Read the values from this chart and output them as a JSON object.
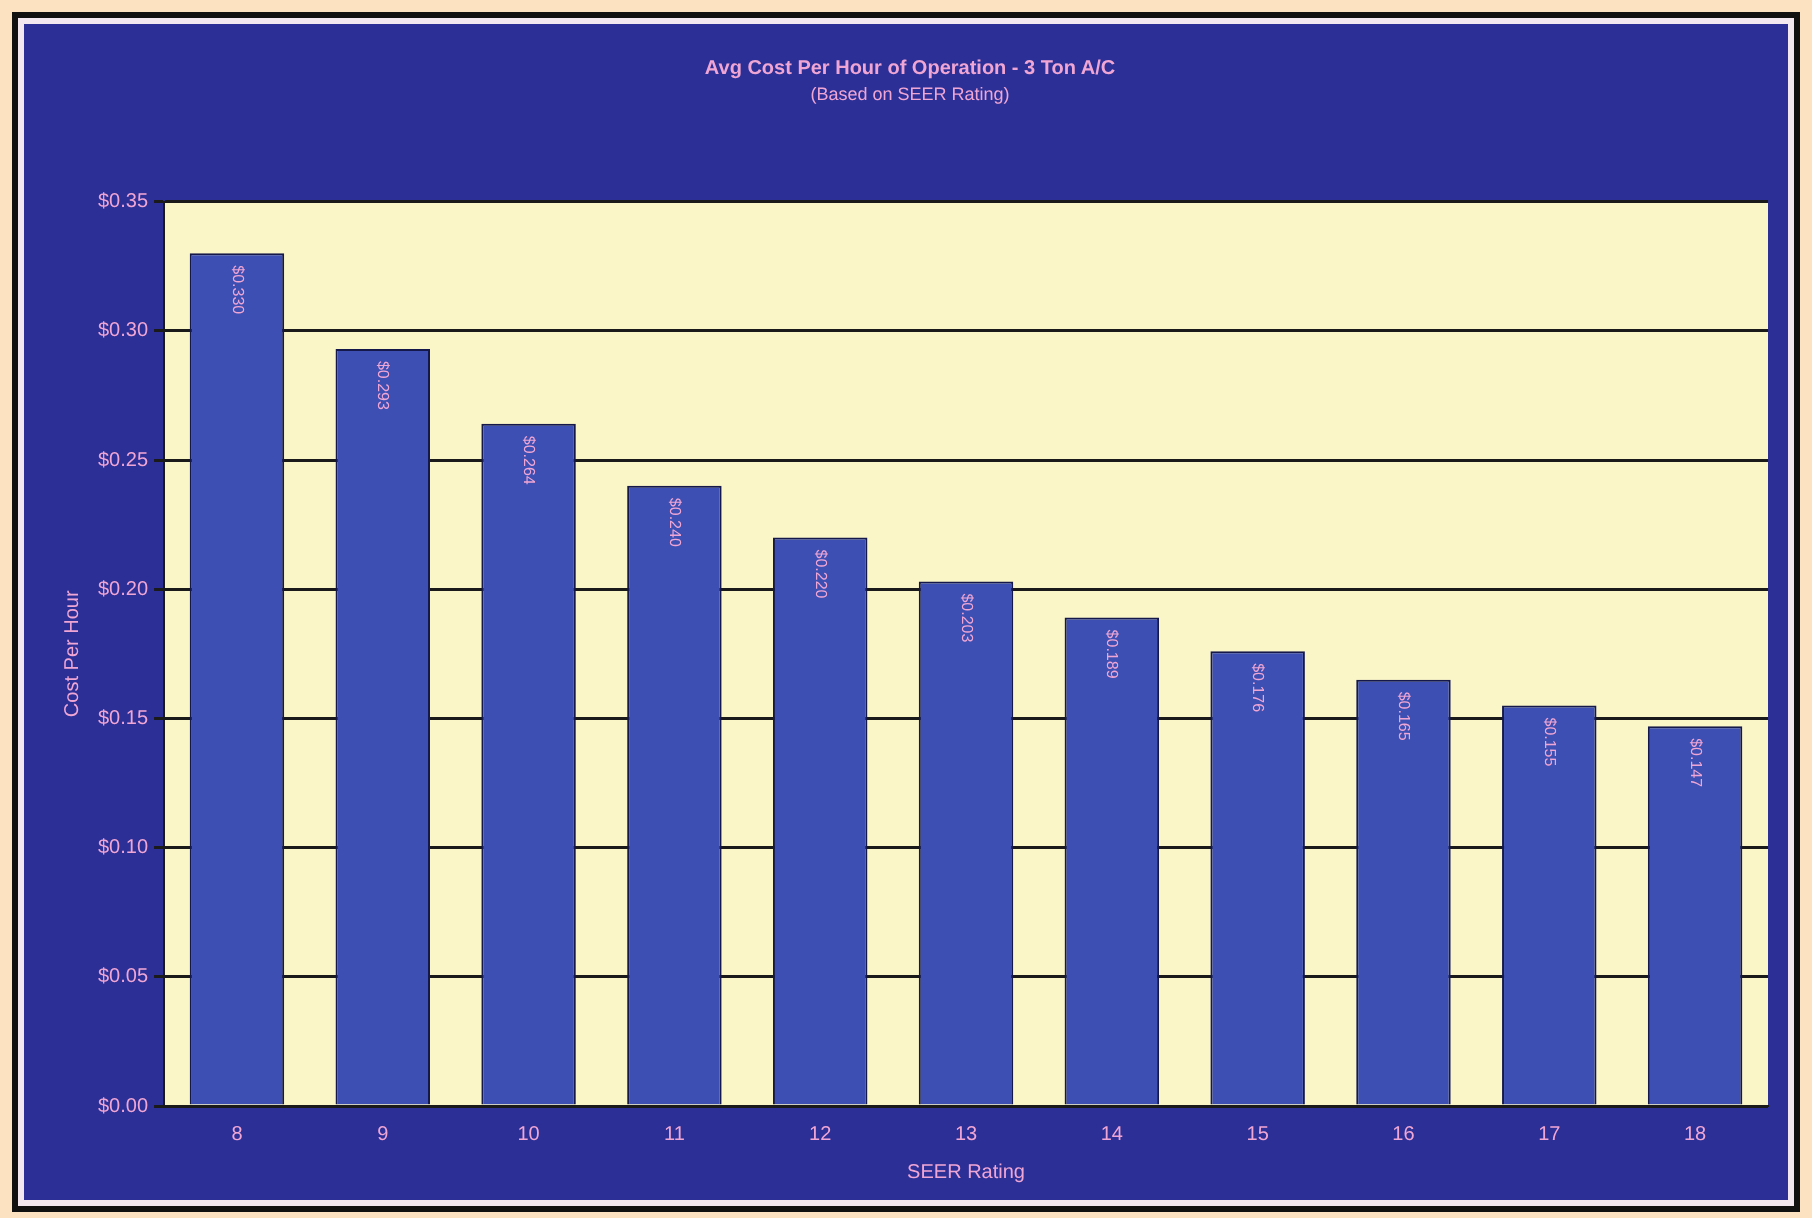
{
  "chart_data": {
    "type": "bar",
    "title": "Avg Cost Per Hour of Operation - 3 Ton A/C",
    "subtitle": "(Based on SEER Rating)",
    "xlabel": "SEER Rating",
    "ylabel": "Cost Per Hour",
    "categories": [
      "8",
      "9",
      "10",
      "11",
      "12",
      "13",
      "14",
      "15",
      "16",
      "17",
      "18"
    ],
    "values": [
      0.33,
      0.293,
      0.264,
      0.24,
      0.22,
      0.203,
      0.189,
      0.176,
      0.165,
      0.155,
      0.147
    ],
    "value_labels": [
      "$0.330",
      "$0.293",
      "$0.264",
      "$0.240",
      "$0.220",
      "$0.203",
      "$0.189",
      "$0.176",
      "$0.165",
      "$0.155",
      "$0.147"
    ],
    "color": "#3d4fb2",
    "ylim": [
      0,
      0.35
    ],
    "yticks": [
      {
        "value": 0,
        "label": "$0.00"
      },
      {
        "value": 0.05,
        "label": "$0.05"
      },
      {
        "value": 0.1,
        "label": "$0.10"
      },
      {
        "value": 0.15,
        "label": "$0.15"
      },
      {
        "value": 0.2,
        "label": "$0.20"
      },
      {
        "value": 0.25,
        "label": "$0.25"
      },
      {
        "value": 0.3,
        "label": "$0.30"
      },
      {
        "value": 0.35,
        "label": "$0.35"
      }
    ],
    "grid": "y",
    "legend": false
  }
}
